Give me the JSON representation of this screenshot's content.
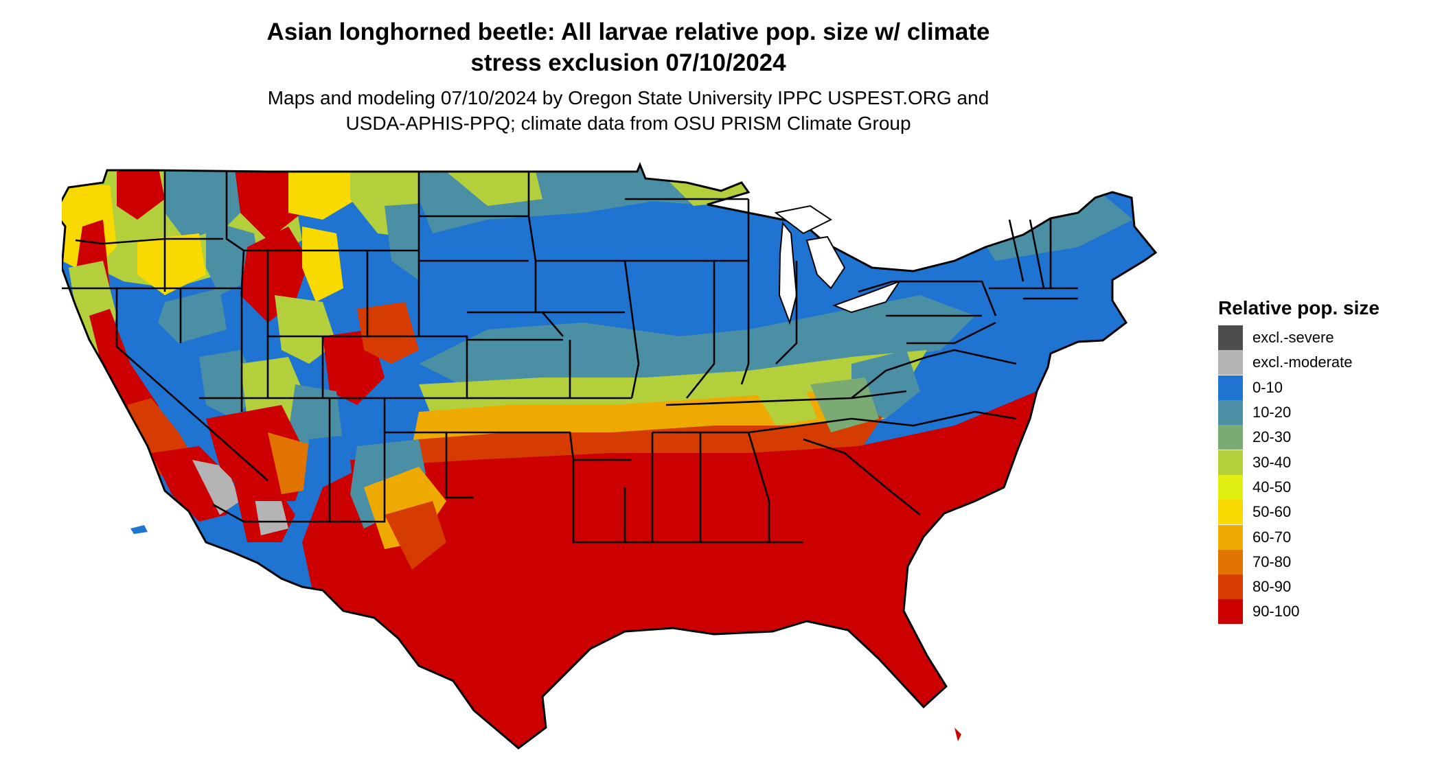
{
  "title": {
    "line1": "Asian longhorned beetle: All larvae relative pop. size w/ climate",
    "line2": "stress exclusion 07/10/2024"
  },
  "subtitle": {
    "line1": "Maps and modeling 07/10/2024 by Oregon State University IPPC USPEST.ORG and",
    "line2": "USDA-APHIS-PPQ; climate data from OSU PRISM Climate Group"
  },
  "legend": {
    "title": "Relative pop. size",
    "items": [
      {
        "label": "excl.-severe",
        "color": "#4d4d4d"
      },
      {
        "label": "excl.-moderate",
        "color": "#b4b4b4"
      },
      {
        "label": "0-10",
        "color": "#1f74d2"
      },
      {
        "label": "10-20",
        "color": "#4b8fa5"
      },
      {
        "label": "20-30",
        "color": "#79ab72"
      },
      {
        "label": "30-40",
        "color": "#b4cf3c"
      },
      {
        "label": "40-50",
        "color": "#e1ee12"
      },
      {
        "label": "50-60",
        "color": "#f8da00"
      },
      {
        "label": "60-70",
        "color": "#eeaa00"
      },
      {
        "label": "70-80",
        "color": "#e17400"
      },
      {
        "label": "80-90",
        "color": "#d63c00"
      },
      {
        "label": "90-100",
        "color": "#cc0000"
      }
    ]
  },
  "map": {
    "region": "contiguous-united-states",
    "colors": {
      "c0_10": "#1f74d2",
      "c10_20": "#4b8fa5",
      "c20_30": "#79ab72",
      "c30_40": "#b4cf3c",
      "c40_50": "#e1ee12",
      "c50_60": "#f8da00",
      "c60_70": "#eeaa00",
      "c70_80": "#e17400",
      "c80_90": "#d63c00",
      "c90_100": "#cc0000",
      "excl_moderate": "#b4b4b4",
      "border": "#000000"
    }
  }
}
